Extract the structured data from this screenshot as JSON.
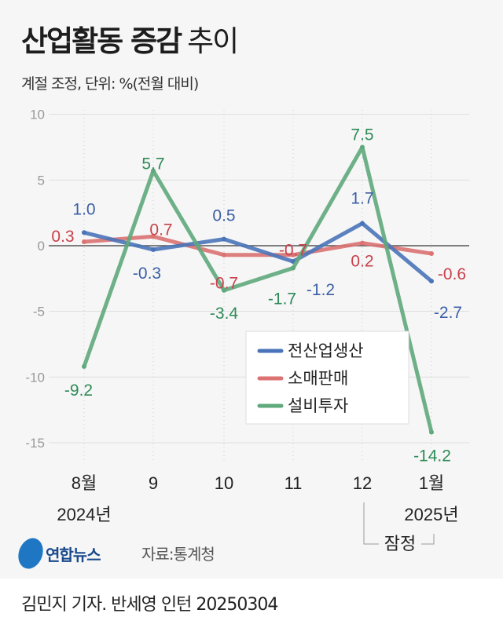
{
  "title": {
    "bold": "산업활동 증감",
    "light": "추이"
  },
  "subtitle": "계절 조정, 단위: %(전월 대비)",
  "source": "자료:통계청",
  "logo": "연합뉴스",
  "credit": "김민지 기자. 반세영 인턴  20250304",
  "chart_data": {
    "type": "line",
    "categories": [
      "8월",
      "9",
      "10",
      "11",
      "12",
      "1월"
    ],
    "year_labels": [
      "2024년",
      "2025년"
    ],
    "annotation": "잠정",
    "ylim": [
      -15,
      10
    ],
    "yticks": [
      10,
      5,
      0,
      -5,
      -10,
      -15
    ],
    "legend_position": "bottom-right",
    "series": [
      {
        "name": "전산업생산",
        "color": "#4a74b9",
        "label_color": "#3b5fa5",
        "values": [
          1.0,
          -0.3,
          0.5,
          -1.2,
          1.7,
          -2.7
        ],
        "labels": [
          "1.0",
          "-0.3",
          "0.5",
          "-1.2",
          "1.7",
          "-2.7"
        ]
      },
      {
        "name": "소매판매",
        "color": "#dc7272",
        "label_color": "#c8414b",
        "values": [
          0.3,
          0.7,
          -0.7,
          -0.7,
          0.2,
          -0.6
        ],
        "labels": [
          "0.3",
          "0.7",
          "-0.7",
          "-0.7",
          "0.2",
          "-0.6"
        ]
      },
      {
        "name": "설비투자",
        "color": "#5fa97c",
        "label_color": "#2e8b57",
        "values": [
          -9.2,
          5.7,
          -3.4,
          -1.7,
          7.5,
          -14.2
        ],
        "labels": [
          "-9.2",
          "5.7",
          "-3.4",
          "-1.7",
          "7.5",
          "-14.2"
        ]
      }
    ]
  }
}
